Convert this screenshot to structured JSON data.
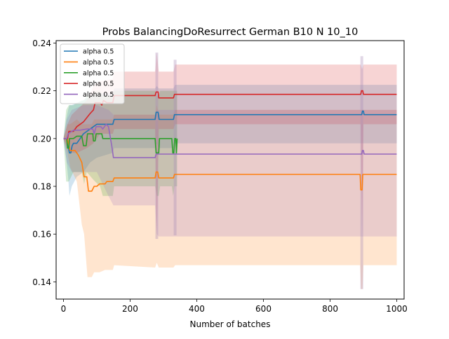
{
  "chart_data": {
    "type": "line",
    "title": "Probs BalancingDoResurrect German B10 N 10_10",
    "xlabel": "Number of batches",
    "ylabel": "",
    "xlim": [
      -22,
      1022
    ],
    "ylim": [
      0.1328,
      0.241
    ],
    "xticks": [
      0,
      200,
      400,
      600,
      800,
      1000
    ],
    "xtick_labels": [
      "0",
      "200",
      "400",
      "600",
      "800",
      "1000"
    ],
    "yticks": [
      0.14,
      0.16,
      0.18,
      0.2,
      0.22,
      0.24
    ],
    "ytick_labels": [
      "0.14",
      "0.16",
      "0.18",
      "0.20",
      "0.22",
      "0.24"
    ],
    "grid": false,
    "legend": {
      "position": "top-left",
      "entries": [
        "alpha 0.5",
        "alpha 0.5",
        "alpha 0.5",
        "alpha 0.5",
        "alpha 0.5"
      ]
    },
    "series": [
      {
        "name": "alpha 0.5",
        "color": "#1f77b4",
        "points": [
          [
            0,
            0.2
          ],
          [
            10,
            0.2
          ],
          [
            14,
            0.197
          ],
          [
            18,
            0.194
          ],
          [
            22,
            0.194
          ],
          [
            26,
            0.197
          ],
          [
            30,
            0.198
          ],
          [
            40,
            0.198
          ],
          [
            50,
            0.2
          ],
          [
            60,
            0.202
          ],
          [
            70,
            0.203
          ],
          [
            80,
            0.204
          ],
          [
            90,
            0.205
          ],
          [
            100,
            0.206
          ],
          [
            120,
            0.206
          ],
          [
            148,
            0.206
          ],
          [
            152,
            0.208
          ],
          [
            275,
            0.208
          ],
          [
            278,
            0.211
          ],
          [
            284,
            0.211
          ],
          [
            287,
            0.208
          ],
          [
            330,
            0.208
          ],
          [
            333,
            0.21
          ],
          [
            895,
            0.21
          ],
          [
            897,
            0.2115
          ],
          [
            900,
            0.2115
          ],
          [
            902,
            0.21
          ],
          [
            1000,
            0.21
          ]
        ],
        "band": [
          [
            0,
            0.2,
            0.2
          ],
          [
            8,
            0.192,
            0.208
          ],
          [
            14,
            0.184,
            0.212
          ],
          [
            18,
            0.176,
            0.214
          ],
          [
            25,
            0.18,
            0.214
          ],
          [
            40,
            0.184,
            0.215
          ],
          [
            60,
            0.186,
            0.216
          ],
          [
            80,
            0.19,
            0.218
          ],
          [
            100,
            0.192,
            0.219
          ],
          [
            148,
            0.194,
            0.219
          ],
          [
            152,
            0.196,
            0.221
          ],
          [
            275,
            0.196,
            0.221
          ],
          [
            280,
            0.198,
            0.222
          ],
          [
            286,
            0.196,
            0.221
          ],
          [
            330,
            0.196,
            0.221
          ],
          [
            335,
            0.198,
            0.2225
          ],
          [
            1000,
            0.198,
            0.2225
          ]
        ]
      },
      {
        "name": "alpha 0.5",
        "color": "#ff7f0e",
        "points": [
          [
            0,
            0.2
          ],
          [
            12,
            0.2
          ],
          [
            16,
            0.197
          ],
          [
            20,
            0.195
          ],
          [
            35,
            0.195
          ],
          [
            45,
            0.193
          ],
          [
            55,
            0.19
          ],
          [
            62,
            0.184
          ],
          [
            70,
            0.184
          ],
          [
            75,
            0.178
          ],
          [
            85,
            0.178
          ],
          [
            92,
            0.18
          ],
          [
            100,
            0.18
          ],
          [
            108,
            0.181
          ],
          [
            125,
            0.181
          ],
          [
            130,
            0.182
          ],
          [
            148,
            0.182
          ],
          [
            152,
            0.1835
          ],
          [
            275,
            0.1835
          ],
          [
            278,
            0.186
          ],
          [
            283,
            0.186
          ],
          [
            286,
            0.1835
          ],
          [
            330,
            0.1835
          ],
          [
            333,
            0.185
          ],
          [
            890,
            0.185
          ],
          [
            892,
            0.1785
          ],
          [
            896,
            0.1785
          ],
          [
            898,
            0.185
          ],
          [
            1000,
            0.185
          ]
        ],
        "band": [
          [
            0,
            0.2,
            0.2
          ],
          [
            12,
            0.194,
            0.206
          ],
          [
            20,
            0.188,
            0.206
          ],
          [
            40,
            0.182,
            0.208
          ],
          [
            55,
            0.164,
            0.206
          ],
          [
            62,
            0.16,
            0.206
          ],
          [
            72,
            0.142,
            0.206
          ],
          [
            85,
            0.142,
            0.206
          ],
          [
            92,
            0.144,
            0.208
          ],
          [
            108,
            0.144,
            0.208
          ],
          [
            125,
            0.145,
            0.208
          ],
          [
            148,
            0.145,
            0.208
          ],
          [
            152,
            0.147,
            0.21
          ],
          [
            275,
            0.146,
            0.21
          ],
          [
            280,
            0.148,
            0.214
          ],
          [
            286,
            0.146,
            0.21
          ],
          [
            330,
            0.146,
            0.21
          ],
          [
            335,
            0.147,
            0.212
          ],
          [
            890,
            0.147,
            0.212
          ],
          [
            893,
            0.137,
            0.212
          ],
          [
            897,
            0.137,
            0.212
          ],
          [
            900,
            0.147,
            0.212
          ],
          [
            1000,
            0.147,
            0.212
          ]
        ]
      },
      {
        "name": "alpha 0.5",
        "color": "#2ca02c",
        "points": [
          [
            0,
            0.2
          ],
          [
            10,
            0.2
          ],
          [
            12,
            0.196
          ],
          [
            16,
            0.196
          ],
          [
            18,
            0.2
          ],
          [
            30,
            0.2
          ],
          [
            40,
            0.201
          ],
          [
            55,
            0.201
          ],
          [
            60,
            0.197
          ],
          [
            68,
            0.197
          ],
          [
            72,
            0.202
          ],
          [
            88,
            0.202
          ],
          [
            90,
            0.199
          ],
          [
            95,
            0.199
          ],
          [
            98,
            0.202
          ],
          [
            115,
            0.202
          ],
          [
            118,
            0.2
          ],
          [
            148,
            0.2
          ],
          [
            275,
            0.2
          ],
          [
            278,
            0.194
          ],
          [
            286,
            0.194
          ],
          [
            288,
            0.2
          ],
          [
            325,
            0.2
          ],
          [
            328,
            0.194
          ],
          [
            331,
            0.194
          ],
          [
            334,
            0.2
          ],
          [
            337,
            0.2
          ],
          [
            339,
            0.194
          ],
          [
            341,
            0.2
          ]
        ],
        "band": [
          [
            0,
            0.2,
            0.2
          ],
          [
            8,
            0.182,
            0.212
          ],
          [
            16,
            0.182,
            0.214
          ],
          [
            30,
            0.186,
            0.214
          ],
          [
            55,
            0.186,
            0.216
          ],
          [
            62,
            0.181,
            0.216
          ],
          [
            70,
            0.186,
            0.218
          ],
          [
            88,
            0.183,
            0.218
          ],
          [
            95,
            0.182,
            0.22
          ],
          [
            110,
            0.18,
            0.22
          ],
          [
            118,
            0.176,
            0.218
          ],
          [
            148,
            0.176,
            0.218
          ],
          [
            152,
            0.18,
            0.22
          ],
          [
            275,
            0.18,
            0.22
          ],
          [
            280,
            0.176,
            0.218
          ],
          [
            286,
            0.176,
            0.218
          ],
          [
            290,
            0.18,
            0.22
          ],
          [
            325,
            0.18,
            0.22
          ],
          [
            329,
            0.176,
            0.22
          ],
          [
            333,
            0.18,
            0.22
          ],
          [
            341,
            0.18,
            0.22
          ]
        ]
      },
      {
        "name": "alpha 0.5",
        "color": "#d62728",
        "points": [
          [
            0,
            0.2
          ],
          [
            12,
            0.2
          ],
          [
            16,
            0.203
          ],
          [
            30,
            0.203
          ],
          [
            40,
            0.205
          ],
          [
            60,
            0.207
          ],
          [
            80,
            0.2105
          ],
          [
            90,
            0.212
          ],
          [
            95,
            0.215
          ],
          [
            110,
            0.215
          ],
          [
            115,
            0.214
          ],
          [
            120,
            0.216
          ],
          [
            130,
            0.215
          ],
          [
            148,
            0.215
          ],
          [
            152,
            0.218
          ],
          [
            275,
            0.218
          ],
          [
            278,
            0.2195
          ],
          [
            284,
            0.2195
          ],
          [
            286,
            0.217
          ],
          [
            330,
            0.217
          ],
          [
            333,
            0.2185
          ],
          [
            892,
            0.2185
          ],
          [
            894,
            0.22
          ],
          [
            898,
            0.22
          ],
          [
            900,
            0.2185
          ],
          [
            1000,
            0.2185
          ]
        ],
        "band": [
          [
            0,
            0.2,
            0.2
          ],
          [
            12,
            0.196,
            0.206
          ],
          [
            25,
            0.194,
            0.21
          ],
          [
            40,
            0.194,
            0.212
          ],
          [
            70,
            0.196,
            0.216
          ],
          [
            90,
            0.198,
            0.222
          ],
          [
            110,
            0.202,
            0.224
          ],
          [
            148,
            0.202,
            0.225
          ],
          [
            152,
            0.204,
            0.228
          ],
          [
            275,
            0.204,
            0.228
          ],
          [
            280,
            0.158,
            0.236
          ],
          [
            286,
            0.204,
            0.228
          ],
          [
            330,
            0.204,
            0.228
          ],
          [
            335,
            0.206,
            0.231
          ],
          [
            892,
            0.206,
            0.231
          ],
          [
            896,
            0.16,
            0.229
          ],
          [
            900,
            0.206,
            0.231
          ],
          [
            1000,
            0.206,
            0.231
          ]
        ]
      },
      {
        "name": "alpha 0.5",
        "color": "#9467bd",
        "points": [
          [
            0,
            0.2
          ],
          [
            10,
            0.2
          ],
          [
            14,
            0.202
          ],
          [
            30,
            0.2035
          ],
          [
            50,
            0.2035
          ],
          [
            70,
            0.204
          ],
          [
            88,
            0.204
          ],
          [
            92,
            0.202
          ],
          [
            98,
            0.205
          ],
          [
            112,
            0.205
          ],
          [
            118,
            0.204
          ],
          [
            128,
            0.206
          ],
          [
            135,
            0.205
          ],
          [
            145,
            0.197
          ],
          [
            150,
            0.192
          ],
          [
            275,
            0.192
          ],
          [
            278,
            0.1935
          ],
          [
            330,
            0.1935
          ],
          [
            895,
            0.1935
          ],
          [
            897,
            0.195
          ],
          [
            900,
            0.195
          ],
          [
            902,
            0.1935
          ],
          [
            1000,
            0.1935
          ]
        ],
        "band": [
          [
            0,
            0.2,
            0.2
          ],
          [
            10,
            0.19,
            0.208
          ],
          [
            25,
            0.186,
            0.212
          ],
          [
            60,
            0.186,
            0.214
          ],
          [
            100,
            0.186,
            0.214
          ],
          [
            135,
            0.176,
            0.212
          ],
          [
            150,
            0.172,
            0.21
          ],
          [
            275,
            0.172,
            0.21
          ],
          [
            280,
            0.16,
            0.212
          ],
          [
            286,
            0.159,
            0.212
          ],
          [
            330,
            0.159,
            0.212
          ],
          [
            340,
            0.159,
            0.212
          ],
          [
            1000,
            0.159,
            0.212
          ]
        ]
      }
    ],
    "band_spikes": [
      {
        "x": 280,
        "low": 0.158,
        "high": 0.236
      },
      {
        "x": 335,
        "low": 0.1595,
        "high": 0.233
      },
      {
        "x": 895,
        "low": 0.137,
        "high": 0.2345
      }
    ]
  }
}
